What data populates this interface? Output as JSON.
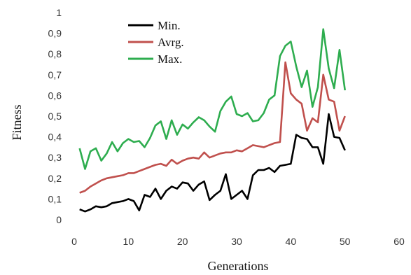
{
  "chart_data": {
    "type": "line",
    "xlabel": "Generations",
    "ylabel": "Fitness",
    "xlim": [
      0,
      60
    ],
    "ylim": [
      0,
      1
    ],
    "xticks": [
      "0",
      "10",
      "20",
      "30",
      "40",
      "50",
      "60"
    ],
    "yticks": [
      "0",
      "0,1",
      "0,2",
      "0,3",
      "0,4",
      "0,5",
      "0,6",
      "0,7",
      "0,8",
      "0,9",
      "1"
    ],
    "grid": false,
    "legend_position": "top-left",
    "x": [
      1,
      2,
      3,
      4,
      5,
      6,
      7,
      8,
      9,
      10,
      11,
      12,
      13,
      14,
      15,
      16,
      17,
      18,
      19,
      20,
      21,
      22,
      23,
      24,
      25,
      26,
      27,
      28,
      29,
      30,
      31,
      32,
      33,
      34,
      35,
      36,
      37,
      38,
      39,
      40,
      41,
      42,
      43,
      44,
      45,
      46,
      47,
      48,
      49,
      50
    ],
    "series": [
      {
        "name": "Min.",
        "color": "#000000",
        "values": [
          0.05,
          0.04,
          0.05,
          0.065,
          0.06,
          0.065,
          0.08,
          0.085,
          0.09,
          0.1,
          0.09,
          0.045,
          0.12,
          0.11,
          0.15,
          0.1,
          0.14,
          0.16,
          0.15,
          0.18,
          0.175,
          0.14,
          0.17,
          0.185,
          0.095,
          0.12,
          0.14,
          0.22,
          0.1,
          0.12,
          0.14,
          0.1,
          0.215,
          0.24,
          0.24,
          0.25,
          0.23,
          0.26,
          0.265,
          0.27,
          0.41,
          0.395,
          0.39,
          0.35,
          0.35,
          0.27,
          0.51,
          0.4,
          0.395,
          0.335
        ]
      },
      {
        "name": "Avrg.",
        "color": "#c0504d",
        "values": [
          0.13,
          0.14,
          0.16,
          0.175,
          0.19,
          0.2,
          0.205,
          0.21,
          0.215,
          0.225,
          0.225,
          0.235,
          0.245,
          0.255,
          0.265,
          0.27,
          0.26,
          0.29,
          0.27,
          0.285,
          0.295,
          0.3,
          0.295,
          0.325,
          0.3,
          0.31,
          0.32,
          0.325,
          0.325,
          0.335,
          0.33,
          0.345,
          0.36,
          0.355,
          0.35,
          0.36,
          0.37,
          0.375,
          0.76,
          0.61,
          0.58,
          0.56,
          0.43,
          0.49,
          0.47,
          0.7,
          0.58,
          0.57,
          0.43,
          0.5
        ]
      },
      {
        "name": "Max.",
        "color": "#2ead4f",
        "values": [
          0.345,
          0.245,
          0.33,
          0.345,
          0.285,
          0.32,
          0.375,
          0.33,
          0.37,
          0.39,
          0.375,
          0.38,
          0.35,
          0.395,
          0.455,
          0.475,
          0.39,
          0.48,
          0.41,
          0.46,
          0.44,
          0.47,
          0.495,
          0.48,
          0.45,
          0.425,
          0.525,
          0.57,
          0.595,
          0.51,
          0.5,
          0.515,
          0.475,
          0.48,
          0.515,
          0.58,
          0.6,
          0.79,
          0.84,
          0.86,
          0.74,
          0.64,
          0.72,
          0.545,
          0.64,
          0.92,
          0.73,
          0.635,
          0.82,
          0.625
        ]
      }
    ]
  }
}
